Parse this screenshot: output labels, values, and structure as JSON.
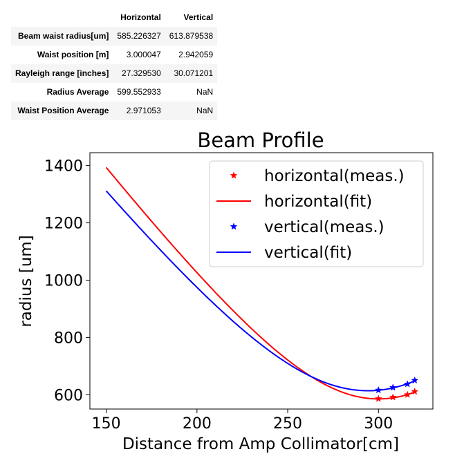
{
  "table": {
    "columns": [
      "",
      "Horizontal",
      "Vertical"
    ],
    "rows": [
      {
        "label": "Beam waist radius[um]",
        "horizontal": "585.226327",
        "vertical": "613.879538"
      },
      {
        "label": "Waist position [m]",
        "horizontal": "3.000047",
        "vertical": "2.942059"
      },
      {
        "label": "Rayleigh range [inches]",
        "horizontal": "27.329530",
        "vertical": "30.071201"
      },
      {
        "label": "Radius Average",
        "horizontal": "599.552933",
        "vertical": "NaN"
      },
      {
        "label": "Waist Position Average",
        "horizontal": "2.971053",
        "vertical": "NaN"
      }
    ]
  },
  "chart_data": {
    "type": "line",
    "title": "Beam Profile",
    "xlabel": "Distance from Amp Collimator[cm]",
    "ylabel": "radius [um]",
    "xlim": [
      141,
      330
    ],
    "ylim": [
      550,
      1445
    ],
    "xticks": [
      150,
      200,
      250,
      300
    ],
    "yticks": [
      600,
      800,
      1000,
      1200,
      1400
    ],
    "grid": false,
    "legend_position": "top-right",
    "series": [
      {
        "name": "horizontal(meas.)",
        "kind": "markers",
        "color": "#ff0000",
        "x": [
          300,
          308,
          316,
          320
        ],
        "y": [
          586,
          591,
          600,
          611
        ]
      },
      {
        "name": "horizontal(fit)",
        "kind": "line",
        "color": "#ff0000",
        "waist_um": 585.226327,
        "waist_cm": 300.0047,
        "rayleigh_cm": 69.417,
        "x_range": [
          150,
          320
        ]
      },
      {
        "name": "vertical(meas.)",
        "kind": "markers",
        "color": "#0000ff",
        "x": [
          300,
          308,
          316,
          320
        ],
        "y": [
          616,
          625,
          637,
          650
        ]
      },
      {
        "name": "vertical(fit)",
        "kind": "line",
        "color": "#0000ff",
        "waist_um": 613.879538,
        "waist_cm": 294.2059,
        "rayleigh_cm": 76.381,
        "x_range": [
          150,
          320
        ]
      }
    ]
  }
}
